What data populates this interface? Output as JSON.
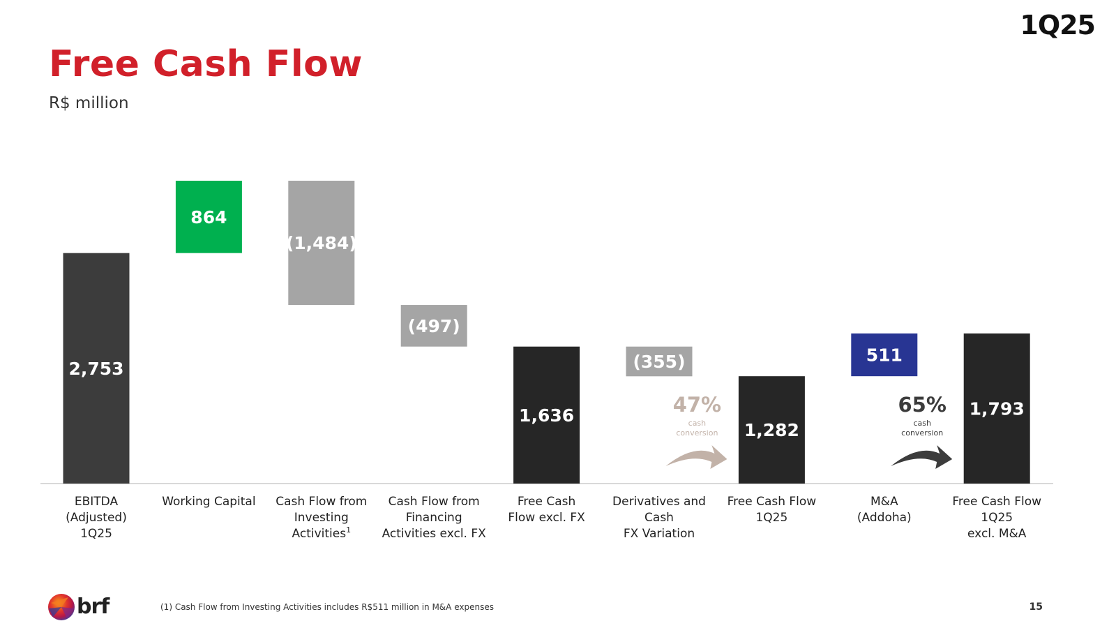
{
  "header": {
    "quarter": "1Q25",
    "title": "Free Cash Flow",
    "unit": "R$ million"
  },
  "footer": {
    "footnote": "(1) Cash Flow from Investing Activities includes R$511 million in M&A expenses",
    "page_number": "15",
    "logo_text": "brf"
  },
  "colors": {
    "brand_red": "#d1202a",
    "total_dark": "#3c3c3c",
    "total_black": "#262626",
    "increase_green": "#00b04f",
    "decrease_grey": "#a5a5a5",
    "mna_blue": "#283593",
    "conversion_light": "#c2b2a8"
  },
  "chart_data": {
    "type": "bar",
    "subtype": "waterfall",
    "title": "Free Cash Flow",
    "ylabel": "R$ million",
    "ylim": [
      0,
      3617
    ],
    "grid": false,
    "steps": [
      {
        "category": "EBITDA\n(Adjusted)\n1Q25",
        "value": 2753,
        "label": "2,753",
        "kind": "total",
        "color": "#3c3c3c"
      },
      {
        "category": "Working Capital",
        "value": 864,
        "label": "864",
        "kind": "delta",
        "color": "#00b04f"
      },
      {
        "category": "Cash Flow from\nInvesting\nActivities",
        "superscript": "1",
        "value": -1484,
        "label": "(1,484)",
        "kind": "delta",
        "color": "#a5a5a5"
      },
      {
        "category": "Cash Flow from\nFinancing\nActivities excl. FX",
        "value": -497,
        "label": "(497)",
        "kind": "delta",
        "color": "#a5a5a5"
      },
      {
        "category": "Free Cash\nFlow excl. FX",
        "value": 1636,
        "label": "1,636",
        "kind": "total",
        "color": "#262626"
      },
      {
        "category": "Derivatives and\nCash\nFX Variation",
        "value": -355,
        "label": "(355)",
        "kind": "delta",
        "color": "#a5a5a5"
      },
      {
        "category": "Free Cash Flow\n1Q25",
        "value": 1282,
        "label": "1,282",
        "kind": "total",
        "color": "#262626"
      },
      {
        "category": "M&A\n(Addoha)",
        "value": 511,
        "label": "511",
        "kind": "delta",
        "color": "#283593"
      },
      {
        "category": "Free Cash Flow\n1Q25\nexcl. M&A",
        "value": 1793,
        "label": "1,793",
        "kind": "total",
        "color": "#262626"
      }
    ],
    "annotations": [
      {
        "value": "47%",
        "text": "cash\nconversion",
        "target": "Free Cash Flow\n1Q25",
        "color": "#c2b2a8"
      },
      {
        "value": "65%",
        "text": "cash\nconversion",
        "target": "Free Cash Flow\n1Q25\nexcl. M&A",
        "color": "#3c3c3c"
      }
    ]
  }
}
